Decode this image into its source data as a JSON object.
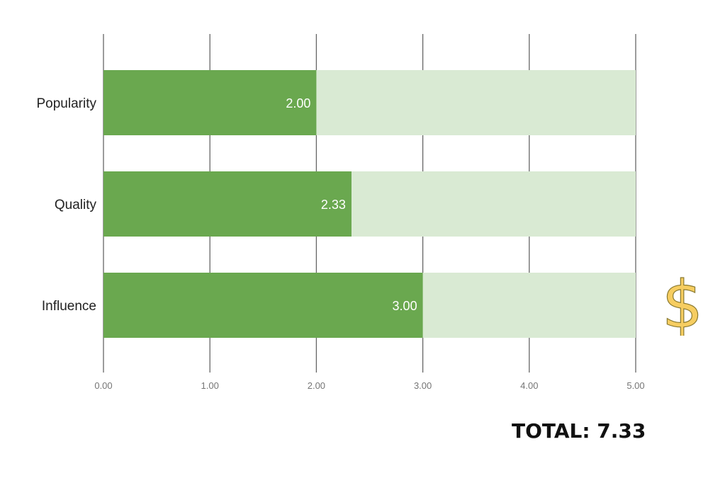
{
  "chart_data": {
    "type": "bar",
    "orientation": "horizontal",
    "stacked_background": true,
    "categories": [
      "Popularity",
      "Quality",
      "Influence"
    ],
    "values": [
      2.0,
      2.33,
      3.0
    ],
    "value_labels": [
      "2.00",
      "2.33",
      "3.00"
    ],
    "max": 5.0,
    "xlim": [
      0,
      5
    ],
    "xticks": [
      0,
      1,
      2,
      3,
      4,
      5
    ],
    "xtick_labels": [
      "0.00",
      "1.00",
      "2.00",
      "3.00",
      "4.00",
      "5.00"
    ],
    "grid": true,
    "legend": "none",
    "colors": {
      "bar": "#6aa84f",
      "track": "#d9ead3",
      "grid": "#666666"
    }
  },
  "total": {
    "text": "TOTAL: 7.33",
    "value": 7.33
  },
  "icons": {
    "dollar": "dollar-sign-icon",
    "dollar_color": "#f6cd61"
  }
}
